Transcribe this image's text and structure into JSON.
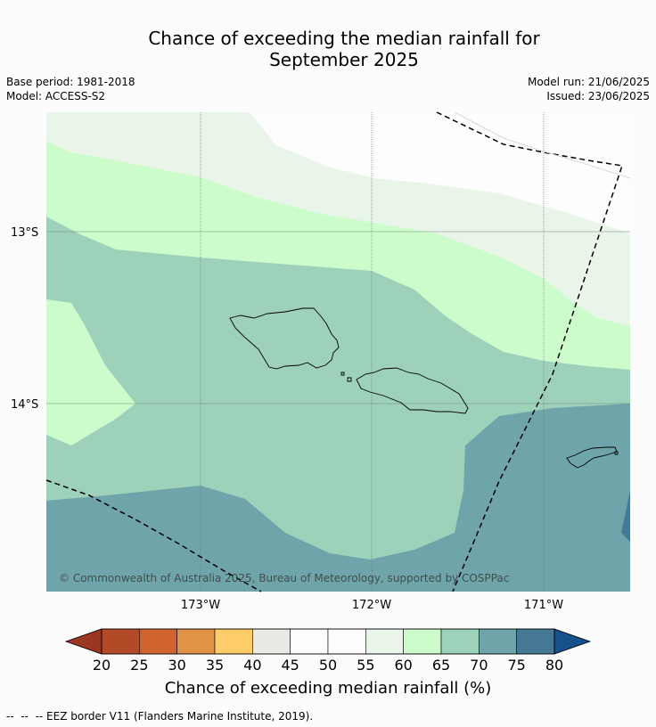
{
  "title_line1": "Chance of exceeding the median rainfall for",
  "title_line2": "September 2025",
  "meta": {
    "base_period": "Base period: 1981-2018",
    "model": "Model: ACCESS-S2",
    "model_run": "Model run: 21/06/2025",
    "issued": "Issued: 23/06/2025"
  },
  "map": {
    "lat_labels": [
      "13°S",
      "14°S"
    ],
    "lon_labels": [
      "173°W",
      "172°W",
      "171°W"
    ],
    "copyright": "© Commonwealth of Australia 2025, Bureau of Meteorology, supported by COSPPac"
  },
  "colorbar": {
    "title": "Chance of exceeding median rainfall (%)",
    "ticks": [
      "20",
      "25",
      "30",
      "35",
      "40",
      "45",
      "50",
      "55",
      "60",
      "65",
      "70",
      "75",
      "80"
    ],
    "colors": [
      "#b24a27",
      "#cf6431",
      "#e29347",
      "#fecc69",
      "#ebe9e6",
      "#fdfdfd",
      "#fdfdfd",
      "#e9f5e9",
      "#ccfccc",
      "#9ed1ba",
      "#6fa5aa",
      "#457996"
    ],
    "under_color": "#9b3621",
    "over_color": "#165189"
  },
  "footer": "--  --  -- EEZ border V11 (Flanders Marine Institute, 2019)."
}
